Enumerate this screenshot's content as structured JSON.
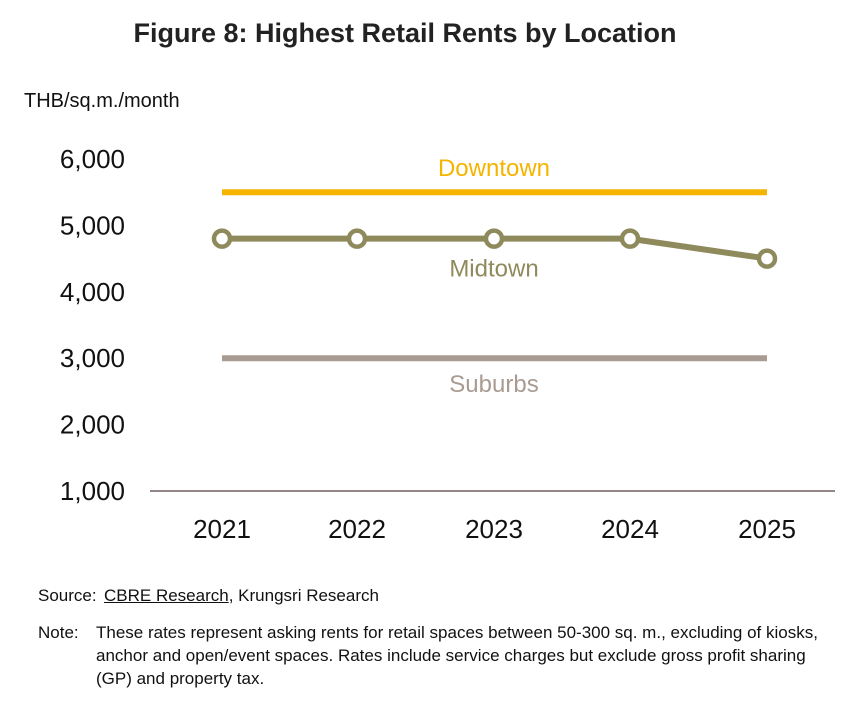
{
  "chart_data": {
    "type": "line",
    "title": "Figure 8: Highest Retail Rents by Location",
    "ylabel": "THB/sq.m./month",
    "xlabel": "",
    "ylim": [
      1000,
      6000
    ],
    "yticks": [
      "1,000",
      "2,000",
      "3,000",
      "4,000",
      "5,000",
      "6,000"
    ],
    "ytick_values": [
      1000,
      2000,
      3000,
      4000,
      5000,
      6000
    ],
    "categories": [
      "2021",
      "2022",
      "2023",
      "2024",
      "2025"
    ],
    "grid": false,
    "series": [
      {
        "name": "Downtown",
        "values": [
          5500,
          5500,
          5500,
          5500,
          5500
        ],
        "color": "#f5b400",
        "markers": false
      },
      {
        "name": "Midtown",
        "values": [
          4800,
          4800,
          4800,
          4800,
          4500
        ],
        "color": "#8f8a5c",
        "markers": true
      },
      {
        "name": "Suburbs",
        "values": [
          3000,
          3000,
          3000,
          3000,
          3000
        ],
        "color": "#a89b92",
        "markers": false
      }
    ]
  },
  "source": {
    "label": "Source:",
    "link_text": "CBRE Research",
    "rest": ", Krungsri Research"
  },
  "note": {
    "label": "Note:",
    "text": "These rates represent asking rents for retail spaces between 50-300 sq. m., excluding of kiosks, anchor and open/event spaces. Rates include service charges but exclude gross profit sharing (GP) and property tax."
  }
}
